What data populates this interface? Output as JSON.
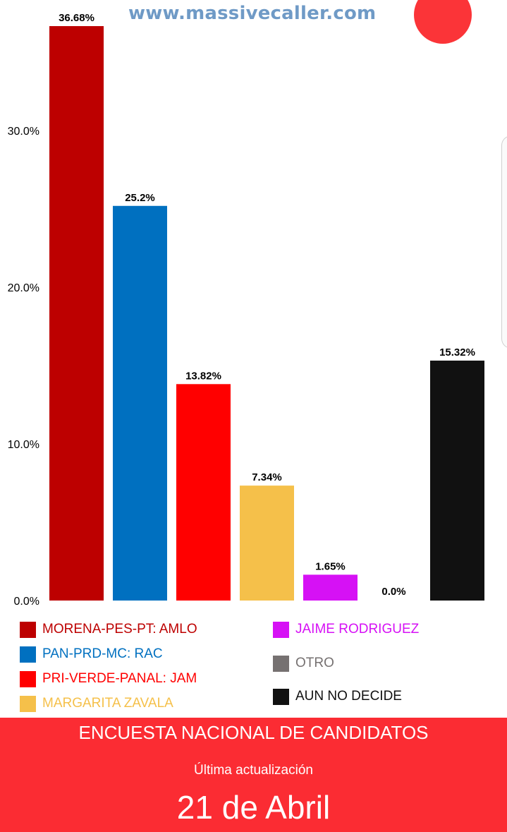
{
  "watermark": "www.massivecaller.com",
  "chart_data": {
    "type": "bar",
    "categories": [
      "MORENA-PES-PT: AMLO",
      "PAN-PRD-MC: RAC",
      "PRI-VERDE-PANAL: JAM",
      "MARGARITA ZAVALA",
      "JAIME RODRIGUEZ",
      "OTRO",
      "AUN NO DECIDE"
    ],
    "values": [
      36.68,
      25.2,
      13.82,
      7.34,
      1.65,
      0.0,
      15.32
    ],
    "value_labels": [
      "36.68%",
      "25.2%",
      "13.82%",
      "7.34%",
      "1.65%",
      "0.0%",
      "15.32%"
    ],
    "colors": [
      "#bd0000",
      "#0070c0",
      "#ff0000",
      "#f5c04a",
      "#d611f5",
      "#767171",
      "#111111"
    ],
    "ylim": [
      0,
      36.68
    ],
    "yticks": [
      0,
      10,
      20,
      30
    ],
    "ytick_labels": [
      "0.0%",
      "10.0%",
      "20.0%",
      "30.0%"
    ],
    "grid": false,
    "legend_position": "bottom"
  },
  "legend": [
    {
      "label": "MORENA-PES-PT: AMLO",
      "color": "#bd0000"
    },
    {
      "label": "PAN-PRD-MC: RAC",
      "color": "#0070c0"
    },
    {
      "label": "PRI-VERDE-PANAL: JAM",
      "color": "#ff0000"
    },
    {
      "label": "MARGARITA ZAVALA",
      "color": "#f5c04a"
    },
    {
      "label": "JAIME RODRIGUEZ",
      "color": "#d611f5"
    },
    {
      "label": "OTRO",
      "color": "#767171"
    },
    {
      "label": "AUN NO DECIDE",
      "color": "#111111"
    }
  ],
  "legend_text_colors": [
    "#bd0000",
    "#0070c0",
    "#ff0000",
    "#f5c04a",
    "#d611f5",
    "#767171",
    "#111111"
  ],
  "banner": {
    "title": "ENCUESTA NACIONAL DE CANDIDATOS",
    "subtitle": "Última actualización",
    "date": "21 de Abril"
  }
}
